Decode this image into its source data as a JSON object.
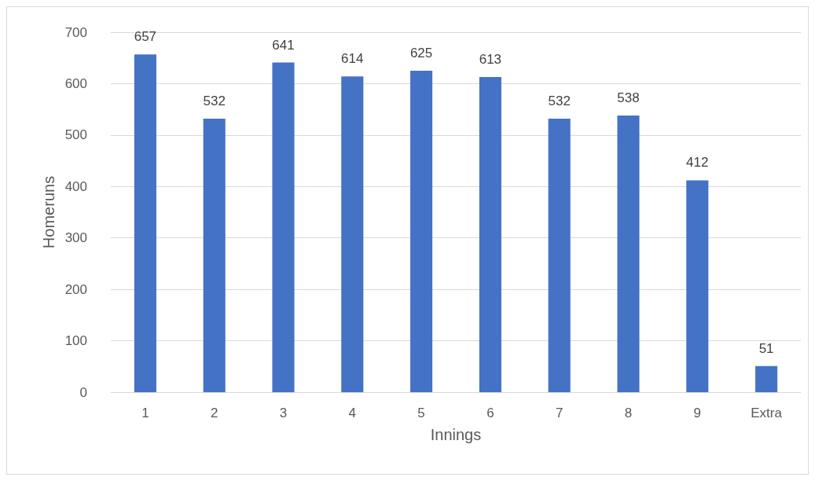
{
  "chart_data": {
    "type": "bar",
    "xlabel": "Innings",
    "ylabel": "Homeruns",
    "categories": [
      "1",
      "2",
      "3",
      "4",
      "5",
      "6",
      "7",
      "8",
      "9",
      "Extra"
    ],
    "values": [
      657,
      532,
      641,
      614,
      625,
      613,
      532,
      538,
      412,
      51
    ],
    "color": "#4472c4",
    "ylim": [
      0,
      700
    ],
    "yticks": [
      0,
      100,
      200,
      300,
      400,
      500,
      600,
      700
    ],
    "grid": true,
    "data_labels": true
  }
}
